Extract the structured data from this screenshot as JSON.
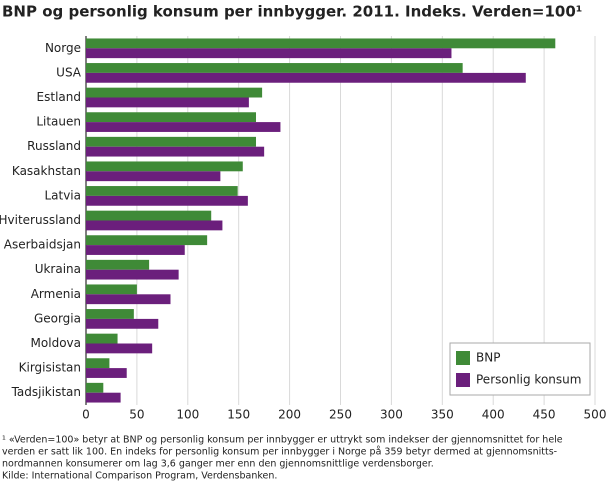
{
  "chart_data": {
    "type": "hbar",
    "title": "BNP og personlig konsum per innbygger. 2011. Indeks. Verden=100¹",
    "categories": [
      "Norge",
      "USA",
      "Estland",
      "Litauen",
      "Russland",
      "Kasakhstan",
      "Latvia",
      "Hviterussland",
      "Aserbaidsjan",
      "Ukraina",
      "Armenia",
      "Georgia",
      "Moldova",
      "Kirgisistan",
      "Tadsjikistan"
    ],
    "series": [
      {
        "name": "BNP",
        "color": "#3f8a37",
        "values": [
          461,
          370,
          173,
          167,
          167,
          154,
          149,
          123,
          119,
          62,
          50,
          47,
          31,
          23,
          17
        ]
      },
      {
        "name": "Personlig konsum",
        "color": "#6b1f7c",
        "values": [
          359,
          432,
          160,
          191,
          175,
          132,
          159,
          134,
          97,
          91,
          83,
          71,
          65,
          40,
          34
        ]
      }
    ],
    "xlim": [
      0,
      500
    ],
    "xticks": [
      0,
      50,
      100,
      150,
      200,
      250,
      300,
      350,
      400,
      450,
      500
    ],
    "grid": true,
    "legend_position": "lower right",
    "notes": [
      "¹ «Verden=100» betyr at BNP og personlig konsum per innbygger er uttrykt som indekser der gjennomsnittet for hele",
      "verden er satt lik 100. En indeks for personlig konsum per innbygger i Norge på 359 betyr dermed at gjennomsnitts-",
      "nordmannen konsumerer om lag 3,6 ganger mer enn den gjennomsnittlige verdensborger.",
      "Kilde: International Comparison Program, Verdensbanken."
    ]
  }
}
